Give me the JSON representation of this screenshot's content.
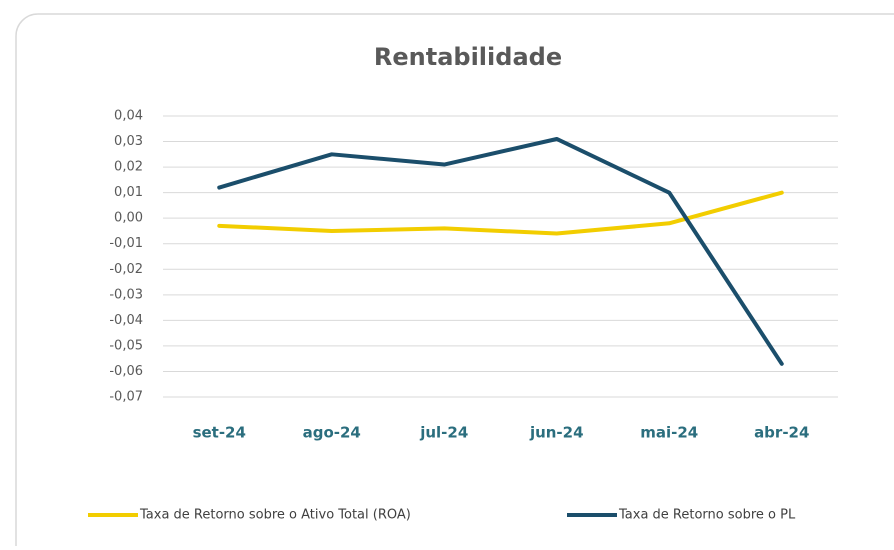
{
  "chart_data": {
    "type": "line",
    "title": "Rentabilidade",
    "categories": [
      "set-24",
      "ago-24",
      "jul-24",
      "jun-24",
      "mai-24",
      "abr-24"
    ],
    "series": [
      {
        "name": "Taxa de Retorno sobre o Ativo Total (ROA)",
        "color": "#f2cd00",
        "values": [
          -0.003,
          -0.005,
          -0.004,
          -0.006,
          -0.002,
          0.01
        ]
      },
      {
        "name": "Taxa de Retorno sobre o PL",
        "color": "#1b4e6b",
        "values": [
          0.012,
          0.025,
          0.021,
          0.031,
          0.01,
          -0.057
        ]
      }
    ],
    "ylim": [
      -0.07,
      0.04
    ],
    "yticks": [
      {
        "value": 0.04,
        "label": "0,04"
      },
      {
        "value": 0.03,
        "label": "0,03"
      },
      {
        "value": 0.02,
        "label": "0,02"
      },
      {
        "value": 0.01,
        "label": "0,01"
      },
      {
        "value": 0.0,
        "label": "0,00"
      },
      {
        "value": -0.01,
        "label": "-0,01"
      },
      {
        "value": -0.02,
        "label": "-0,02"
      },
      {
        "value": -0.03,
        "label": "-0,03"
      },
      {
        "value": -0.04,
        "label": "-0,04"
      },
      {
        "value": -0.05,
        "label": "-0,05"
      },
      {
        "value": -0.06,
        "label": "-0,06"
      },
      {
        "value": -0.07,
        "label": "-0,07"
      }
    ],
    "grid": true,
    "legend": "bottom"
  }
}
